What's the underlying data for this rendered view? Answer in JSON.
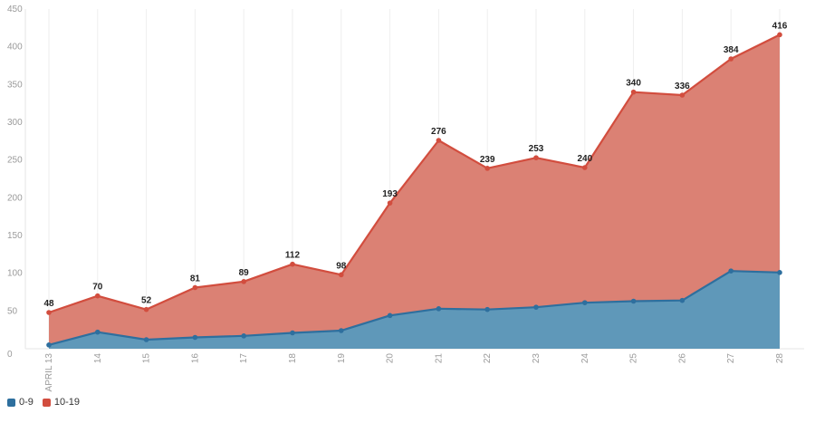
{
  "chart_data": {
    "type": "area",
    "stacked": true,
    "title": "",
    "xlabel": "",
    "ylabel": "",
    "categories": [
      "APRIL 13",
      "14",
      "15",
      "16",
      "17",
      "18",
      "19",
      "20",
      "21",
      "22",
      "23",
      "24",
      "25",
      "26",
      "27",
      "28"
    ],
    "ylim": [
      0,
      450
    ],
    "yticks": [
      0,
      50,
      100,
      150,
      200,
      250,
      300,
      350,
      400,
      450
    ],
    "grid": "vertical",
    "legend_position": "bottom-left",
    "series": [
      {
        "name": "0-9",
        "color": "#2e6f9e",
        "fill": "#5f98b9",
        "values": [
          5,
          22,
          12,
          15,
          17,
          21,
          24,
          44,
          53,
          52,
          55,
          61,
          63,
          64,
          103,
          101
        ]
      },
      {
        "name": "10-19",
        "color": "#d24d3e",
        "fill": "#db8174",
        "values": [
          43,
          48,
          40,
          66,
          72,
          91,
          74,
          149,
          223,
          187,
          198,
          179,
          277,
          272,
          281,
          315
        ]
      }
    ],
    "totals_labels": [
      "48",
      "70",
      "52",
      "81",
      "89",
      "112",
      "98",
      "193",
      "276",
      "239",
      "253",
      "240",
      "340",
      "336",
      "384",
      "416"
    ]
  }
}
